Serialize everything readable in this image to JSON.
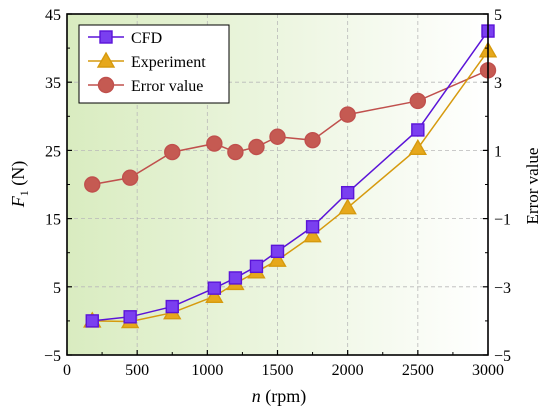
{
  "chart_data": {
    "type": "line",
    "xlabel": {
      "italic": "n",
      "rest": " (rpm)"
    },
    "ylabel_left": {
      "italic": "F",
      "sub": "1",
      "rest": " (N)"
    },
    "ylabel_right": "Error value",
    "xlim": [
      0,
      3000
    ],
    "ylim_left": [
      -5,
      45
    ],
    "ylim_right": [
      -5,
      5
    ],
    "x_ticks": [
      "0",
      "500",
      "1000",
      "1500",
      "2000",
      "2500",
      "3000"
    ],
    "x_tick_values": [
      0,
      500,
      1000,
      1500,
      2000,
      2500,
      3000
    ],
    "y_left_ticks": [
      "-5",
      "5",
      "15",
      "25",
      "35",
      "45"
    ],
    "y_left_tick_values": [
      -5,
      5,
      15,
      25,
      35,
      45
    ],
    "y_right_ticks": [
      "-5",
      "-3",
      "-1",
      "1",
      "3",
      "5"
    ],
    "y_right_tick_values": [
      -5,
      -3,
      -1,
      1,
      3,
      5
    ],
    "grid": true,
    "legend_position": "top-left",
    "background_gradient": [
      "#d9ecc0",
      "#ffffff"
    ],
    "series": [
      {
        "name": "CFD",
        "axis": "left",
        "marker": "square",
        "line_color": "#5b14d8",
        "fill_color": "#7a3ff0",
        "x": [
          180,
          450,
          750,
          1050,
          1200,
          1350,
          1500,
          1750,
          2000,
          2500,
          3000
        ],
        "values": [
          0.0,
          0.6,
          2.1,
          4.8,
          6.3,
          8.0,
          10.2,
          13.8,
          18.8,
          28.0,
          42.5
        ]
      },
      {
        "name": "Experiment",
        "axis": "left",
        "marker": "triangle",
        "line_color": "#d69a0e",
        "fill_color": "#e6a81c",
        "x": [
          180,
          450,
          750,
          1050,
          1200,
          1350,
          1500,
          1750,
          2000,
          2500,
          3000
        ],
        "values": [
          0.0,
          -0.1,
          1.2,
          3.6,
          5.5,
          7.2,
          8.9,
          12.5,
          16.6,
          25.3,
          39.6
        ]
      },
      {
        "name": "Error value",
        "axis": "right",
        "marker": "circle",
        "line_color": "#c0504d",
        "fill_color": "#c55a52",
        "x": [
          180,
          450,
          750,
          1050,
          1200,
          1350,
          1500,
          1750,
          2000,
          2500,
          3000
        ],
        "values": [
          0.0,
          0.2,
          0.95,
          1.2,
          0.95,
          1.1,
          1.4,
          1.3,
          2.05,
          2.45,
          3.35
        ]
      }
    ]
  }
}
